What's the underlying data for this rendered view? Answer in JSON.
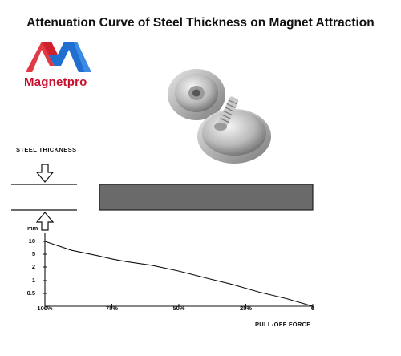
{
  "title": "Attenuation Curve of Steel Thickness on Magnet Attraction",
  "brand": {
    "name": "Magnetpro",
    "logo_icon": "magnetpro-m-logo",
    "colors": {
      "red": "#d0202e",
      "blue": "#1f6fd0"
    }
  },
  "product_image": {
    "icon": "magnet-pair-photo"
  },
  "diagram": {
    "steel_label": "STEEL THICKNESS",
    "plate_color": "#6a6a6a"
  },
  "chart_data": {
    "type": "line",
    "ylabel": "mm",
    "xlabel": "PULL-OFF FORCE",
    "yticks": [
      "10",
      "5",
      "2",
      "1",
      "0.5"
    ],
    "xticks": [
      "100%",
      "75%",
      "50%",
      "25%",
      "0"
    ],
    "series": [
      {
        "x": [
          100,
          90,
          80,
          75,
          70,
          60,
          50,
          40,
          30,
          25,
          20,
          10,
          0
        ],
        "y": [
          10,
          6.5,
          4.6,
          3.9,
          3.3,
          2.4,
          1.7,
          1.2,
          0.85,
          0.7,
          0.55,
          0.3,
          0.0
        ]
      }
    ]
  }
}
